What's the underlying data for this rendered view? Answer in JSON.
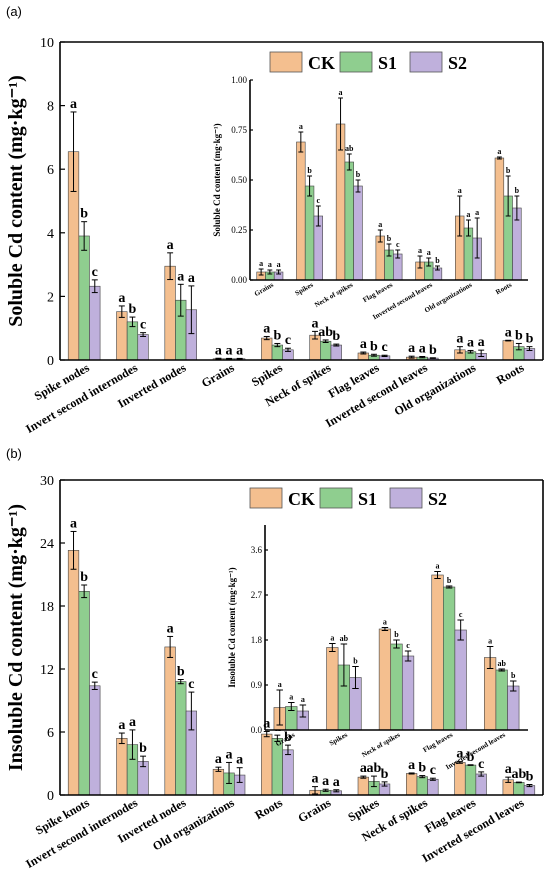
{
  "colors": {
    "CK": "#f4bf8f",
    "S1": "#8fce8f",
    "S2": "#bfb0dc"
  },
  "chart_data": [
    {
      "panel": "(a)",
      "type": "bar",
      "ylabel": "Soluble Cd content (mg·kg⁻¹)",
      "ylim": [
        0,
        10
      ],
      "yticks": [
        "0",
        "2",
        "4",
        "6",
        "8",
        "10"
      ],
      "legend": {
        "placement": "top-right",
        "entries": [
          "CK",
          "S1",
          "S2"
        ]
      },
      "categories": [
        "Spike nodes",
        "Invert second internodes",
        "Inverted nodes",
        "Grains",
        "Spikes",
        "Neck of spikes",
        "Flag leaves",
        "Inverted second leaves",
        "Old organizations",
        "Roots"
      ],
      "series": [
        {
          "name": "CK",
          "values": [
            6.55,
            1.52,
            2.95,
            0.04,
            0.69,
            0.78,
            0.22,
            0.09,
            0.32,
            0.61
          ],
          "errors": [
            1.25,
            0.18,
            0.42,
            0.015,
            0.05,
            0.12,
            0.03,
            0.03,
            0.1,
            0.01
          ],
          "sig": [
            "a",
            "a",
            "a",
            "a",
            "a",
            "a",
            "a",
            "a",
            "a",
            "a"
          ]
        },
        {
          "name": "S1",
          "values": [
            3.9,
            1.2,
            1.88,
            0.04,
            0.47,
            0.59,
            0.15,
            0.09,
            0.26,
            0.42
          ],
          "errors": [
            0.45,
            0.15,
            0.5,
            0.01,
            0.05,
            0.04,
            0.03,
            0.02,
            0.04,
            0.1
          ],
          "sig": [
            "b",
            "b",
            "a",
            "a",
            "b",
            "ab",
            "b",
            "a",
            "a",
            "b"
          ]
        },
        {
          "name": "S2",
          "values": [
            2.32,
            0.8,
            1.58,
            0.04,
            0.32,
            0.47,
            0.13,
            0.06,
            0.21,
            0.36
          ],
          "errors": [
            0.2,
            0.06,
            0.75,
            0.01,
            0.05,
            0.03,
            0.02,
            0.01,
            0.1,
            0.06
          ],
          "sig": [
            "c",
            "c",
            "a",
            "a",
            "c",
            "b",
            "c",
            "b",
            "a",
            "b"
          ]
        }
      ],
      "inset": {
        "type": "bar",
        "ylabel": "Soluble Cd content (mg·kg⁻¹)",
        "ylim": [
          0,
          1.0
        ],
        "yticks": [
          "0.00",
          "0.25",
          "0.50",
          "0.75",
          "1.00"
        ],
        "categories": [
          "Grains",
          "Spikes",
          "Neck of spikes",
          "Flag leaves",
          "Inverted second leaves",
          "Old organizations",
          "Roots"
        ],
        "series": [
          {
            "name": "CK",
            "values": [
              0.04,
              0.69,
              0.78,
              0.22,
              0.09,
              0.32,
              0.61
            ],
            "errors": [
              0.015,
              0.05,
              0.13,
              0.03,
              0.03,
              0.1,
              0.005
            ],
            "sig": [
              "a",
              "a",
              "a",
              "a",
              "a",
              "a",
              "a"
            ]
          },
          {
            "name": "S1",
            "values": [
              0.04,
              0.47,
              0.59,
              0.15,
              0.09,
              0.26,
              0.42
            ],
            "errors": [
              0.01,
              0.05,
              0.04,
              0.03,
              0.02,
              0.04,
              0.1
            ],
            "sig": [
              "a",
              "b",
              "ab",
              "b",
              "a",
              "a",
              "b"
            ]
          },
          {
            "name": "S2",
            "values": [
              0.04,
              0.32,
              0.47,
              0.13,
              0.06,
              0.21,
              0.36
            ],
            "errors": [
              0.01,
              0.05,
              0.03,
              0.02,
              0.01,
              0.1,
              0.06
            ],
            "sig": [
              "a",
              "c",
              "b",
              "c",
              "b",
              "a",
              "b"
            ]
          }
        ]
      }
    },
    {
      "panel": "(b)",
      "type": "bar",
      "ylabel": "Insoluble Cd content (mg·kg⁻¹)",
      "ylim": [
        0,
        30
      ],
      "yticks": [
        "0",
        "6",
        "12",
        "18",
        "24",
        "30"
      ],
      "legend": {
        "placement": "top-right",
        "entries": [
          "CK",
          "S1",
          "S2"
        ]
      },
      "categories": [
        "Spike knots",
        "Invert second internodes",
        "Inverted nodes",
        "Old organizations",
        "Roots",
        "Grains",
        "Spikes",
        "Neck of spikes",
        "Flag leaves",
        "Inverted second leaves"
      ],
      "series": [
        {
          "name": "CK",
          "values": [
            23.3,
            5.4,
            14.1,
            2.45,
            5.8,
            0.45,
            1.7,
            2.05,
            3.1,
            1.45
          ],
          "errors": [
            1.8,
            0.5,
            1.0,
            0.2,
            0.25,
            0.35,
            0.1,
            0.05,
            0.08,
            0.25
          ],
          "sig": [
            "a",
            "a",
            "a",
            "a",
            "a",
            "a",
            "a",
            "a",
            "a",
            "a"
          ]
        },
        {
          "name": "S1",
          "values": [
            19.4,
            4.8,
            10.8,
            2.1,
            5.4,
            0.45,
            1.3,
            1.75,
            2.85,
            1.2
          ],
          "errors": [
            0.6,
            1.4,
            0.2,
            1.0,
            0.3,
            0.1,
            0.5,
            0.1,
            0.03,
            0.03
          ],
          "sig": [
            "b",
            "a",
            "b",
            "a",
            "a",
            "a",
            "ab",
            "b",
            "b",
            "ab"
          ]
        },
        {
          "name": "S2",
          "values": [
            10.4,
            3.2,
            8.0,
            1.9,
            4.3,
            0.4,
            1.05,
            1.5,
            2.0,
            0.9
          ],
          "errors": [
            0.35,
            0.5,
            1.8,
            0.7,
            0.45,
            0.1,
            0.2,
            0.1,
            0.2,
            0.1
          ],
          "sig": [
            "c",
            "b",
            "c",
            "a",
            "b",
            "a",
            "b",
            "c",
            "c",
            "b"
          ]
        }
      ],
      "inset": {
        "type": "bar",
        "ylabel": "Insoluble Cd content (mg·kg⁻¹)",
        "ylim": [
          0,
          4.1
        ],
        "yticks": [
          "0.0",
          "0.9",
          "1.8",
          "2.7",
          "3.6"
        ],
        "categories": [
          "Grains",
          "Spikes",
          "Neck of spikes",
          "Flag leaves",
          "Inverted second leaves"
        ],
        "series": [
          {
            "name": "CK",
            "values": [
              0.45,
              1.65,
              2.02,
              3.1,
              1.45
            ],
            "errors": [
              0.35,
              0.08,
              0.03,
              0.07,
              0.22
            ],
            "sig": [
              "a",
              "a",
              "a",
              "a",
              "a"
            ]
          },
          {
            "name": "S1",
            "values": [
              0.47,
              1.3,
              1.72,
              2.86,
              1.2
            ],
            "errors": [
              0.08,
              0.42,
              0.08,
              0.02,
              0.02
            ],
            "sig": [
              "a",
              "ab",
              "b",
              "b",
              "ab"
            ]
          },
          {
            "name": "S2",
            "values": [
              0.38,
              1.05,
              1.48,
              2.0,
              0.88
            ],
            "errors": [
              0.12,
              0.22,
              0.1,
              0.2,
              0.1
            ],
            "sig": [
              "a",
              "b",
              "c",
              "c",
              "b"
            ]
          }
        ]
      }
    }
  ]
}
